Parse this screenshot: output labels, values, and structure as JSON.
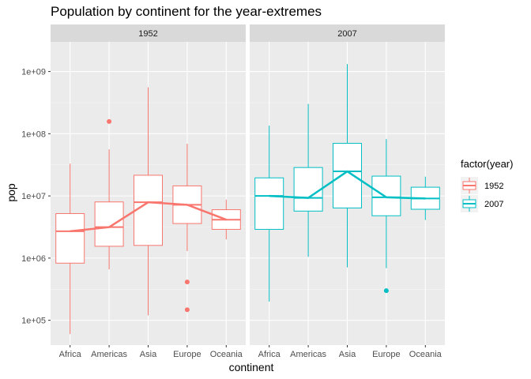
{
  "chart_data": {
    "type": "boxplot",
    "title": "Population by continent for the year-extremes",
    "xlabel": "continent",
    "ylabel": "pop",
    "y_scale": "log10",
    "y_range": [
      40000,
      3000000000
    ],
    "y_ticks": [
      {
        "value": 100000,
        "label": "1e+05"
      },
      {
        "value": 1000000,
        "label": "1e+06"
      },
      {
        "value": 10000000,
        "label": "1e+07"
      },
      {
        "value": 100000000,
        "label": "1e+08"
      },
      {
        "value": 1000000000,
        "label": "1e+09"
      }
    ],
    "categories": [
      "Africa",
      "Americas",
      "Asia",
      "Europe",
      "Oceania"
    ],
    "legend": {
      "title": "factor(year)",
      "position": "right",
      "items": [
        {
          "label": "1952",
          "color": "#F8766D"
        },
        {
          "label": "2007",
          "color": "#00BFC4"
        }
      ]
    },
    "facets": [
      {
        "label": "1952",
        "color": "#F8766D",
        "boxes": [
          {
            "category": "Africa",
            "min": 60000,
            "q1": 830000,
            "median": 2700000,
            "q3": 5200000,
            "max": 33000000,
            "outliers": []
          },
          {
            "category": "Americas",
            "min": 660000,
            "q1": 1550000,
            "median": 3150000,
            "q3": 8000000,
            "max": 56000000,
            "outliers": [
              157000000
            ]
          },
          {
            "category": "Asia",
            "min": 120000,
            "q1": 1600000,
            "median": 7900000,
            "q3": 21500000,
            "max": 556000000,
            "outliers": []
          },
          {
            "category": "Europe",
            "min": 1300000,
            "q1": 3600000,
            "median": 7200000,
            "q3": 14500000,
            "max": 69000000,
            "outliers": [
              413000,
              148000
            ]
          },
          {
            "category": "Oceania",
            "min": 2000000,
            "q1": 2900000,
            "median": 4150000,
            "q3": 6000000,
            "max": 8700000,
            "outliers": []
          }
        ]
      },
      {
        "label": "2007",
        "color": "#00BFC4",
        "boxes": [
          {
            "category": "Africa",
            "min": 200000,
            "q1": 2900000,
            "median": 10000000,
            "q3": 19500000,
            "max": 135000000,
            "outliers": []
          },
          {
            "category": "Americas",
            "min": 1050000,
            "q1": 5700000,
            "median": 9300000,
            "q3": 28600000,
            "max": 301000000,
            "outliers": []
          },
          {
            "category": "Asia",
            "min": 710000,
            "q1": 6400000,
            "median": 24800000,
            "q3": 70000000,
            "max": 1320000000,
            "outliers": []
          },
          {
            "category": "Europe",
            "min": 690000,
            "q1": 4800000,
            "median": 9500000,
            "q3": 20800000,
            "max": 82000000,
            "outliers": [
              300000
            ]
          },
          {
            "category": "Oceania",
            "min": 4100000,
            "q1": 6100000,
            "median": 9100000,
            "q3": 13800000,
            "max": 20400000,
            "outliers": []
          }
        ]
      }
    ]
  }
}
